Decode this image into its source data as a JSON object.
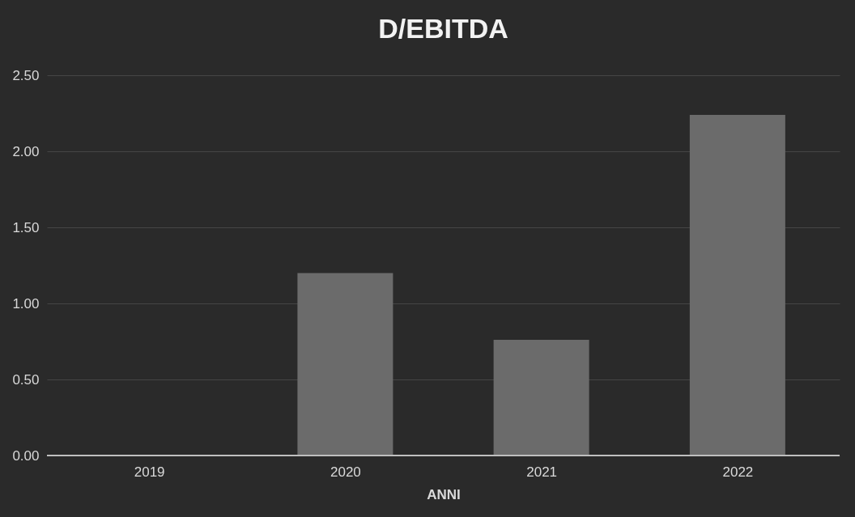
{
  "chart_data": {
    "type": "bar",
    "title": "D/EBITDA",
    "xlabel": "ANNI",
    "categories": [
      "2019",
      "2020",
      "2021",
      "2022"
    ],
    "values": [
      0,
      1.2,
      0.76,
      2.24
    ],
    "color": "#6b6b6b",
    "ylim": [
      0,
      2.5
    ],
    "yticks": [
      {
        "value": 0,
        "label": "0.00"
      },
      {
        "value": 0.5,
        "label": "0.50"
      },
      {
        "value": 1,
        "label": "1.00"
      },
      {
        "value": 1.5,
        "label": "1.50"
      },
      {
        "value": 2,
        "label": "2.00"
      },
      {
        "value": 2.5,
        "label": "2.50"
      }
    ],
    "grid": "y"
  }
}
